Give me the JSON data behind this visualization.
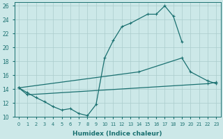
{
  "xlabel": "Humidex (Indice chaleur)",
  "curve1_x": [
    0,
    1,
    2,
    3,
    4,
    5,
    6,
    7,
    8,
    9,
    10,
    11,
    12,
    13,
    15,
    16,
    17,
    18,
    19
  ],
  "curve1_y": [
    14.2,
    13.5,
    12.8,
    12.2,
    11.5,
    11.0,
    11.2,
    10.5,
    10.2,
    11.8,
    18.5,
    21.0,
    23.0,
    23.5,
    24.8,
    24.8,
    26.0,
    24.5,
    20.8
  ],
  "curve2_x": [
    0,
    14,
    19,
    20,
    22,
    23
  ],
  "curve2_y": [
    14.2,
    16.5,
    18.5,
    16.5,
    15.2,
    14.8
  ],
  "curve3_x": [
    0,
    1,
    22,
    23
  ],
  "curve3_y": [
    14.2,
    13.2,
    14.8,
    15.0
  ],
  "ylim_min": 10,
  "ylim_max": 26.5,
  "xlim_min": -0.5,
  "xlim_max": 23.5,
  "yticks": [
    10,
    12,
    14,
    16,
    18,
    20,
    22,
    24,
    26
  ],
  "xticks": [
    0,
    1,
    2,
    3,
    4,
    5,
    6,
    7,
    8,
    9,
    10,
    11,
    12,
    13,
    14,
    15,
    16,
    17,
    18,
    19,
    20,
    21,
    22,
    23
  ],
  "line_color": "#1a7070",
  "bg_color": "#cce8e8",
  "grid_color": "#aacccc",
  "fig_width": 3.2,
  "fig_height": 2.0,
  "dpi": 100
}
